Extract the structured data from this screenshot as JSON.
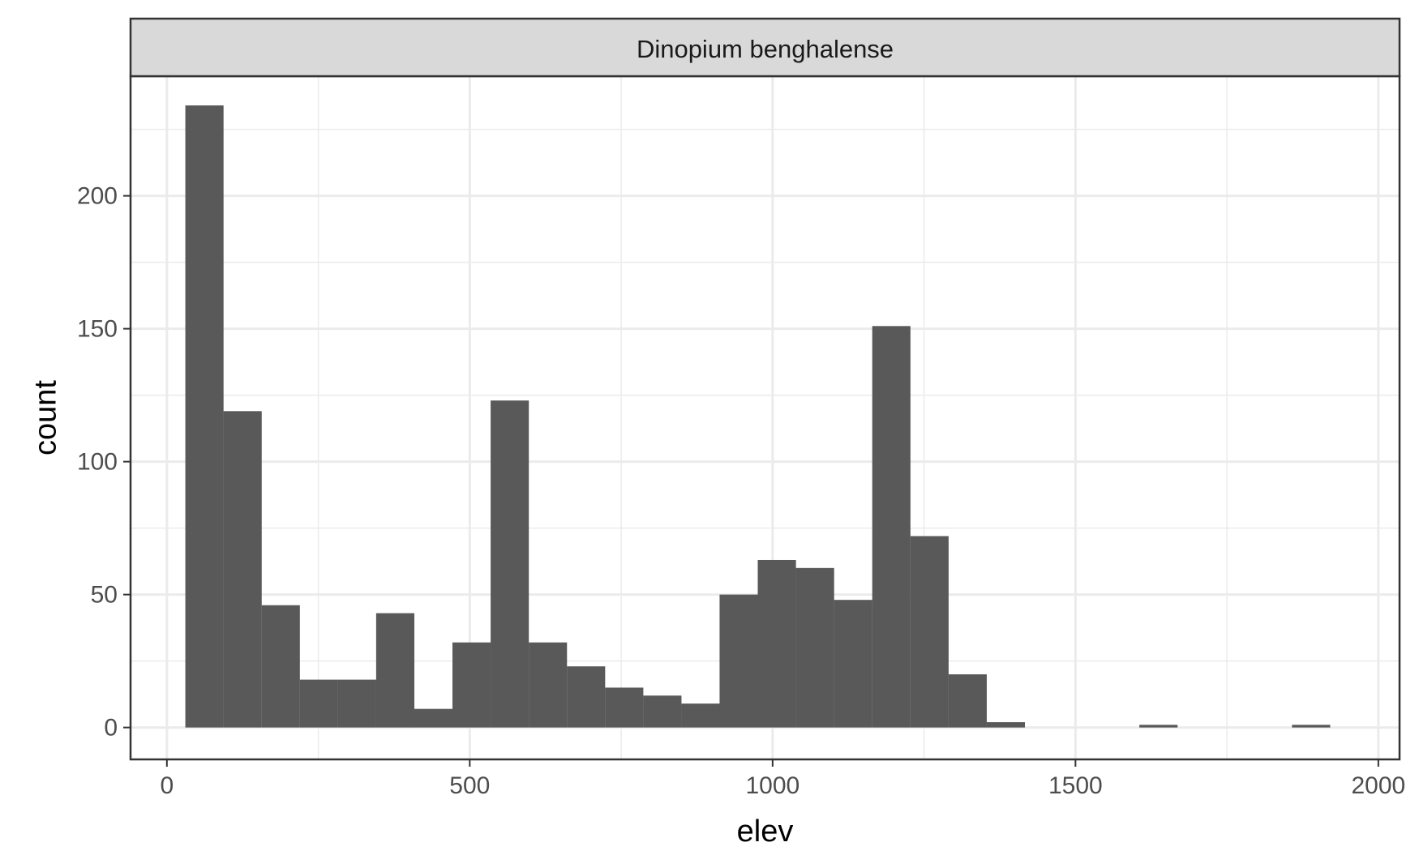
{
  "chart_data": {
    "type": "bar",
    "facet_label": "Dinopium benghalense",
    "xlabel": "elev",
    "ylabel": "count",
    "xlim": [
      -60,
      2035
    ],
    "ylim": [
      -12,
      245
    ],
    "x_ticks": [
      0,
      500,
      1000,
      1500,
      2000
    ],
    "y_ticks": [
      0,
      50,
      100,
      150,
      200
    ],
    "x_tick_labels": [
      "0",
      "500",
      "1000",
      "1500",
      "2000"
    ],
    "y_tick_labels": [
      "0",
      "50",
      "100",
      "150",
      "200"
    ],
    "bin_width": 63.1,
    "bins": [
      {
        "x": 62,
        "count": 234
      },
      {
        "x": 125,
        "count": 119
      },
      {
        "x": 188,
        "count": 46
      },
      {
        "x": 251,
        "count": 18
      },
      {
        "x": 314,
        "count": 18
      },
      {
        "x": 377,
        "count": 43
      },
      {
        "x": 440,
        "count": 7
      },
      {
        "x": 503,
        "count": 32
      },
      {
        "x": 566,
        "count": 123
      },
      {
        "x": 629,
        "count": 32
      },
      {
        "x": 692,
        "count": 23
      },
      {
        "x": 755,
        "count": 15
      },
      {
        "x": 818,
        "count": 12
      },
      {
        "x": 881,
        "count": 9
      },
      {
        "x": 944,
        "count": 50
      },
      {
        "x": 1007,
        "count": 63
      },
      {
        "x": 1070,
        "count": 60
      },
      {
        "x": 1133,
        "count": 48
      },
      {
        "x": 1196,
        "count": 151
      },
      {
        "x": 1259,
        "count": 72
      },
      {
        "x": 1322,
        "count": 20
      },
      {
        "x": 1385,
        "count": 2
      },
      {
        "x": 1448,
        "count": 0
      },
      {
        "x": 1511,
        "count": 0
      },
      {
        "x": 1574,
        "count": 0
      },
      {
        "x": 1637,
        "count": 1
      },
      {
        "x": 1700,
        "count": 0
      },
      {
        "x": 1763,
        "count": 0
      },
      {
        "x": 1826,
        "count": 0
      },
      {
        "x": 1889,
        "count": 1
      }
    ],
    "grid": true,
    "legend": "none",
    "colors": {
      "bar": "#595959",
      "strip_background": "#d9d9d9",
      "panel_border": "#333333",
      "grid": "#ebebeb"
    }
  }
}
